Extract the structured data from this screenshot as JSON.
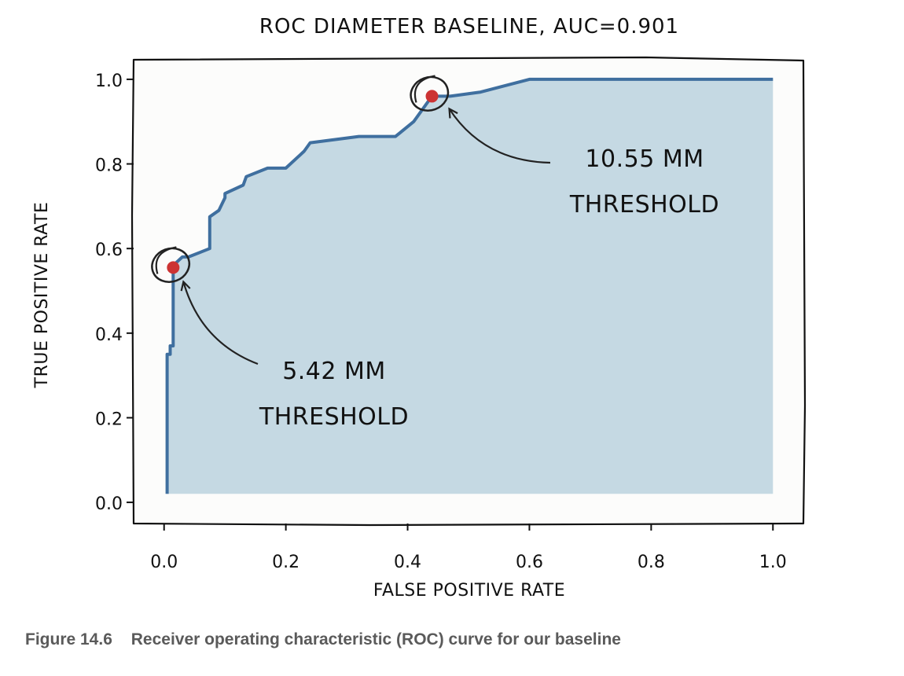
{
  "chart_data": {
    "type": "area",
    "title": "ROC DIAMETER BASELINE, AUC=0.901",
    "xlabel": "FALSE POSITIVE RATE",
    "ylabel": "TRUE POSITIVE RATE",
    "xlim": [
      -0.05,
      1.05
    ],
    "ylim": [
      -0.05,
      1.05
    ],
    "x_ticks": [
      "0.0",
      "0.2",
      "0.4",
      "0.6",
      "0.8",
      "1.0"
    ],
    "y_ticks": [
      "0.0",
      "0.2",
      "0.4",
      "0.6",
      "0.8",
      "1.0"
    ],
    "grid": false,
    "series": [
      {
        "x": [
          0.005,
          0.005,
          0.01,
          0.01,
          0.015,
          0.015,
          0.03,
          0.04,
          0.075,
          0.075,
          0.09,
          0.1,
          0.1,
          0.13,
          0.135,
          0.17,
          0.2,
          0.23,
          0.24,
          0.32,
          0.38,
          0.41,
          0.44,
          0.47,
          0.52,
          0.6,
          1.0
        ],
        "y": [
          0.02,
          0.35,
          0.35,
          0.37,
          0.37,
          0.56,
          0.58,
          0.58,
          0.6,
          0.675,
          0.69,
          0.72,
          0.73,
          0.75,
          0.77,
          0.79,
          0.79,
          0.83,
          0.85,
          0.865,
          0.865,
          0.9,
          0.96,
          0.96,
          0.97,
          1.0,
          1.0
        ],
        "color": "#3f6f9f",
        "fill_color": "#c5d9e3"
      }
    ],
    "highlight_points": [
      {
        "x": 0.015,
        "y": 0.555,
        "color": "#cc3333"
      },
      {
        "x": 0.44,
        "y": 0.96,
        "color": "#cc3333"
      }
    ],
    "annotations": [
      {
        "lines": [
          "5.42 MM",
          "THRESHOLD"
        ],
        "x": 0.015,
        "y": 0.555
      },
      {
        "lines": [
          "10.55 MM",
          "THRESHOLD"
        ],
        "x": 0.44,
        "y": 0.96
      }
    ]
  },
  "caption": {
    "figure_number": "Figure 14.6",
    "text": "Receiver operating characteristic (ROC) curve for our baseline"
  }
}
